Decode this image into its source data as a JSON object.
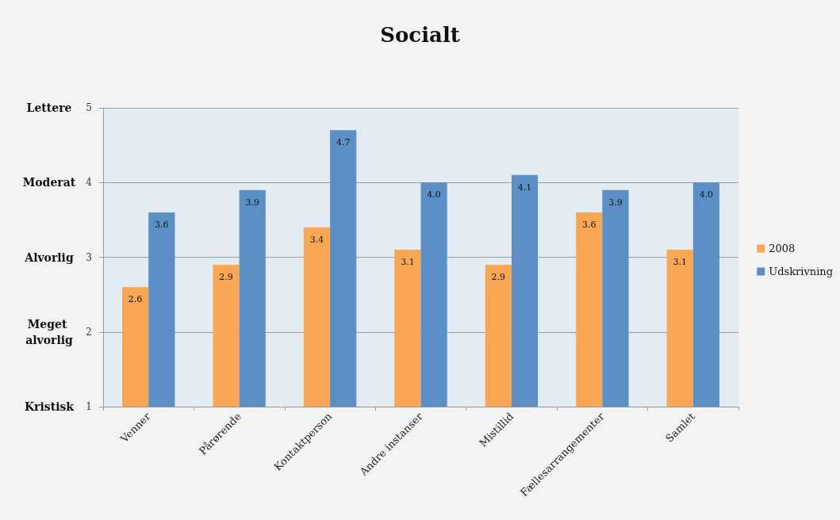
{
  "chart_data": {
    "type": "bar",
    "title": "Socialt",
    "categories": [
      "Venner",
      "Pårørende",
      "Kontaktperson",
      "Andre instanser",
      "Mistillid",
      "Fællesarrangementer",
      "Samlet"
    ],
    "series": [
      {
        "name": "2008",
        "color": "#f9a655",
        "values": [
          2.6,
          2.9,
          3.4,
          3.1,
          2.9,
          3.6,
          3.1
        ],
        "value_labels": [
          "2.6",
          "2.9",
          "3.4",
          "3.1",
          "2.9",
          "3.6",
          "3.1"
        ]
      },
      {
        "name": "Udskrivning",
        "color": "#5b8fc6",
        "values": [
          3.6,
          3.9,
          4.7,
          4.0,
          4.1,
          3.9,
          4.0
        ],
        "value_labels": [
          "3.6",
          "3.9",
          "4.7",
          "4.0",
          "4.1",
          "3.9",
          "4.0"
        ]
      }
    ],
    "ylim": [
      1,
      5
    ],
    "yticks": [
      1,
      2,
      3,
      4,
      5
    ],
    "annotations": [
      "Lettere",
      "Moderat",
      "Alvorlig",
      "Meget alvorlig",
      "Kristisk"
    ],
    "grid": "y",
    "legend": "right"
  }
}
